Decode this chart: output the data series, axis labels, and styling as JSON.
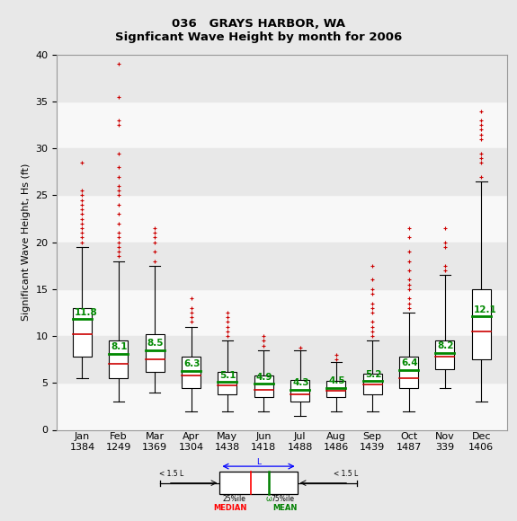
{
  "title1": "036   GRAYS HARBOR, WA",
  "title2": "Signficant Wave Height by month for 2006",
  "ylabel": "Significant Wave Height, Hs (ft)",
  "months": [
    "Jan",
    "Feb",
    "Mar",
    "Apr",
    "May",
    "Jun",
    "Jul",
    "Aug",
    "Sep",
    "Oct",
    "Nov",
    "Dec"
  ],
  "counts": [
    1384,
    1249,
    1369,
    1304,
    1438,
    1418,
    1488,
    1486,
    1439,
    1487,
    339,
    1406
  ],
  "ylim": [
    0,
    40
  ],
  "yticks": [
    0,
    5,
    10,
    15,
    20,
    25,
    30,
    35,
    40
  ],
  "box_stats": [
    {
      "mean": 11.8,
      "median": 10.2,
      "q1": 7.8,
      "q3": 13.0,
      "whislo": 5.5,
      "whishi": 19.5,
      "fliers_above": [
        20.0,
        20.5,
        21.0,
        21.5,
        22.0,
        22.5,
        23.0,
        23.5,
        24.0,
        24.5,
        25.0,
        25.5,
        28.5
      ],
      "fliers_below": []
    },
    {
      "mean": 8.1,
      "median": 7.0,
      "q1": 5.5,
      "q3": 9.5,
      "whislo": 3.0,
      "whishi": 18.0,
      "fliers_above": [
        18.5,
        19.0,
        19.5,
        20.0,
        20.5,
        21.0,
        22.0,
        23.0,
        24.0,
        25.0,
        25.5,
        26.0,
        27.0,
        28.0,
        29.5,
        32.5,
        33.0,
        35.5,
        39.0
      ],
      "fliers_below": []
    },
    {
      "mean": 8.5,
      "median": 7.5,
      "q1": 6.2,
      "q3": 10.2,
      "whislo": 4.0,
      "whishi": 17.5,
      "fliers_above": [
        18.0,
        19.0,
        20.0,
        20.5,
        21.0,
        21.5
      ],
      "fliers_below": []
    },
    {
      "mean": 6.3,
      "median": 5.8,
      "q1": 4.5,
      "q3": 7.8,
      "whislo": 2.0,
      "whishi": 11.0,
      "fliers_above": [
        11.5,
        12.0,
        12.5,
        13.0,
        14.0
      ],
      "fliers_below": []
    },
    {
      "mean": 5.1,
      "median": 4.7,
      "q1": 3.8,
      "q3": 6.2,
      "whislo": 2.0,
      "whishi": 9.5,
      "fliers_above": [
        10.0,
        10.5,
        11.0,
        11.5,
        12.0,
        12.5
      ],
      "fliers_below": []
    },
    {
      "mean": 4.9,
      "median": 4.3,
      "q1": 3.5,
      "q3": 5.8,
      "whislo": 2.0,
      "whishi": 8.5,
      "fliers_above": [
        9.0,
        9.5,
        10.0
      ],
      "fliers_below": []
    },
    {
      "mean": 4.3,
      "median": 3.8,
      "q1": 3.0,
      "q3": 5.3,
      "whislo": 1.5,
      "whishi": 8.5,
      "fliers_above": [
        8.8
      ],
      "fliers_below": []
    },
    {
      "mean": 4.5,
      "median": 4.2,
      "q1": 3.5,
      "q3": 5.2,
      "whislo": 2.0,
      "whishi": 7.2,
      "fliers_above": [
        7.5,
        8.0
      ],
      "fliers_below": []
    },
    {
      "mean": 5.2,
      "median": 4.8,
      "q1": 3.8,
      "q3": 6.0,
      "whislo": 2.0,
      "whishi": 9.5,
      "fliers_above": [
        10.0,
        10.5,
        11.0,
        11.5,
        12.5,
        13.0,
        13.5,
        14.5,
        15.0,
        16.0,
        17.5
      ],
      "fliers_below": []
    },
    {
      "mean": 6.4,
      "median": 5.5,
      "q1": 4.5,
      "q3": 7.8,
      "whislo": 2.0,
      "whishi": 12.5,
      "fliers_above": [
        13.0,
        13.5,
        14.0,
        15.0,
        15.5,
        16.0,
        17.0,
        18.0,
        19.0,
        20.5,
        21.5
      ],
      "fliers_below": []
    },
    {
      "mean": 8.2,
      "median": 7.8,
      "q1": 6.5,
      "q3": 9.5,
      "whislo": 4.5,
      "whishi": 16.5,
      "fliers_above": [
        17.0,
        17.5,
        19.5,
        20.0,
        21.5
      ],
      "fliers_below": []
    },
    {
      "mean": 12.1,
      "median": 10.5,
      "q1": 7.5,
      "q3": 15.0,
      "whislo": 3.0,
      "whishi": 26.5,
      "fliers_above": [
        27.0,
        28.5,
        29.0,
        29.5,
        31.0,
        31.5,
        32.0,
        32.5,
        33.0,
        34.0
      ],
      "fliers_below": []
    }
  ],
  "mean_color": "#008800",
  "median_color": "#cc0000",
  "outlier_color": "#cc0000",
  "box_facecolor": "#ffffff",
  "box_edgecolor": "#000000",
  "whisker_color": "#000000",
  "bg_color": "#e8e8e8",
  "stripe_color": "#f8f8f8",
  "title_fontsize": 9.5,
  "axis_fontsize": 8,
  "tick_fontsize": 8,
  "mean_fontsize": 7.5
}
